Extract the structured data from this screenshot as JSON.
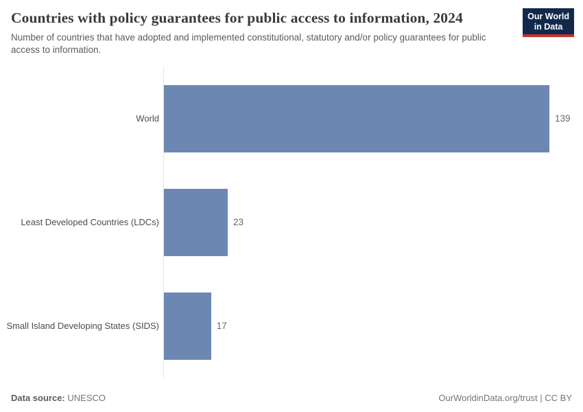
{
  "header": {
    "title": "Countries with policy guarantees for public access to information, 2024",
    "subtitle": "Number of countries that have adopted and implemented constitutional, statutory and/or policy guarantees for public access to information.",
    "logo": {
      "line1": "Our World",
      "line2": "in Data"
    }
  },
  "chart_data": {
    "type": "bar",
    "orientation": "horizontal",
    "title": "Countries with policy guarantees for public access to information, 2024",
    "categories": [
      "World",
      "Least Developed Countries (LDCs)",
      "Small Island Developing States (SIDS)"
    ],
    "values": [
      139,
      23,
      17
    ],
    "value_labels": [
      "139",
      "23",
      "17"
    ],
    "xlabel": "",
    "ylabel": "",
    "xlim": [
      0,
      139
    ],
    "grid": false,
    "legend": false,
    "bar_color": "#6c87b1"
  },
  "footer": {
    "source_label": "Data source:",
    "source_value": "UNESCO",
    "attribution": "OurWorldinData.org/trust | CC BY"
  },
  "colors": {
    "bar": "#6c87b1",
    "axis_line": "#e2e2e2",
    "logo_navy": "#12294b",
    "logo_red": "#c5332b",
    "title_text": "#3a3a3a",
    "subtitle_text": "#5b5b5b",
    "category_label_text": "#4c4c4c",
    "value_label_text": "#666666",
    "footer_text": "#757575"
  }
}
